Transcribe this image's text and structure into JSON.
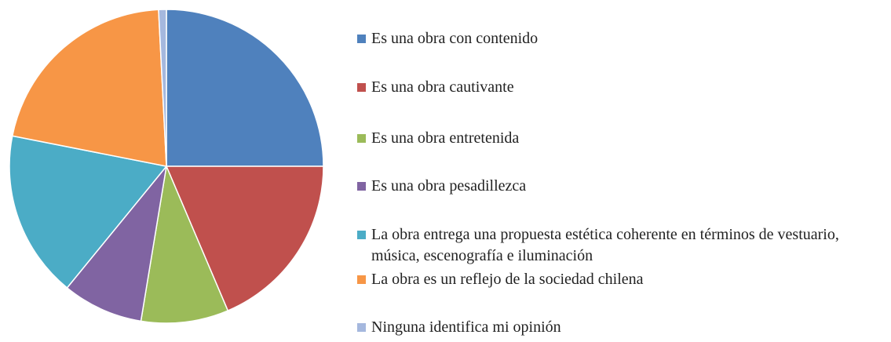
{
  "chart_data": {
    "type": "pie",
    "categories": [
      "Es una obra con contenido",
      "Es una obra cautivante",
      "Es una obra entretenida",
      "Es una obra pesadillezca",
      "La obra entrega una propuesta estética coherente en términos de vestuario, música, escenografía e iluminación",
      "La obra es un reflejo de la sociedad chilena",
      "Ninguna identifica mi opinión"
    ],
    "values": [
      25,
      18.6,
      9,
      8.3,
      17.2,
      21.1,
      0.8
    ],
    "colors": [
      "#4f81bd",
      "#c0504d",
      "#9bbb59",
      "#8064a2",
      "#4bacc6",
      "#f79646",
      "#a5b8de"
    ],
    "legend": "right"
  }
}
